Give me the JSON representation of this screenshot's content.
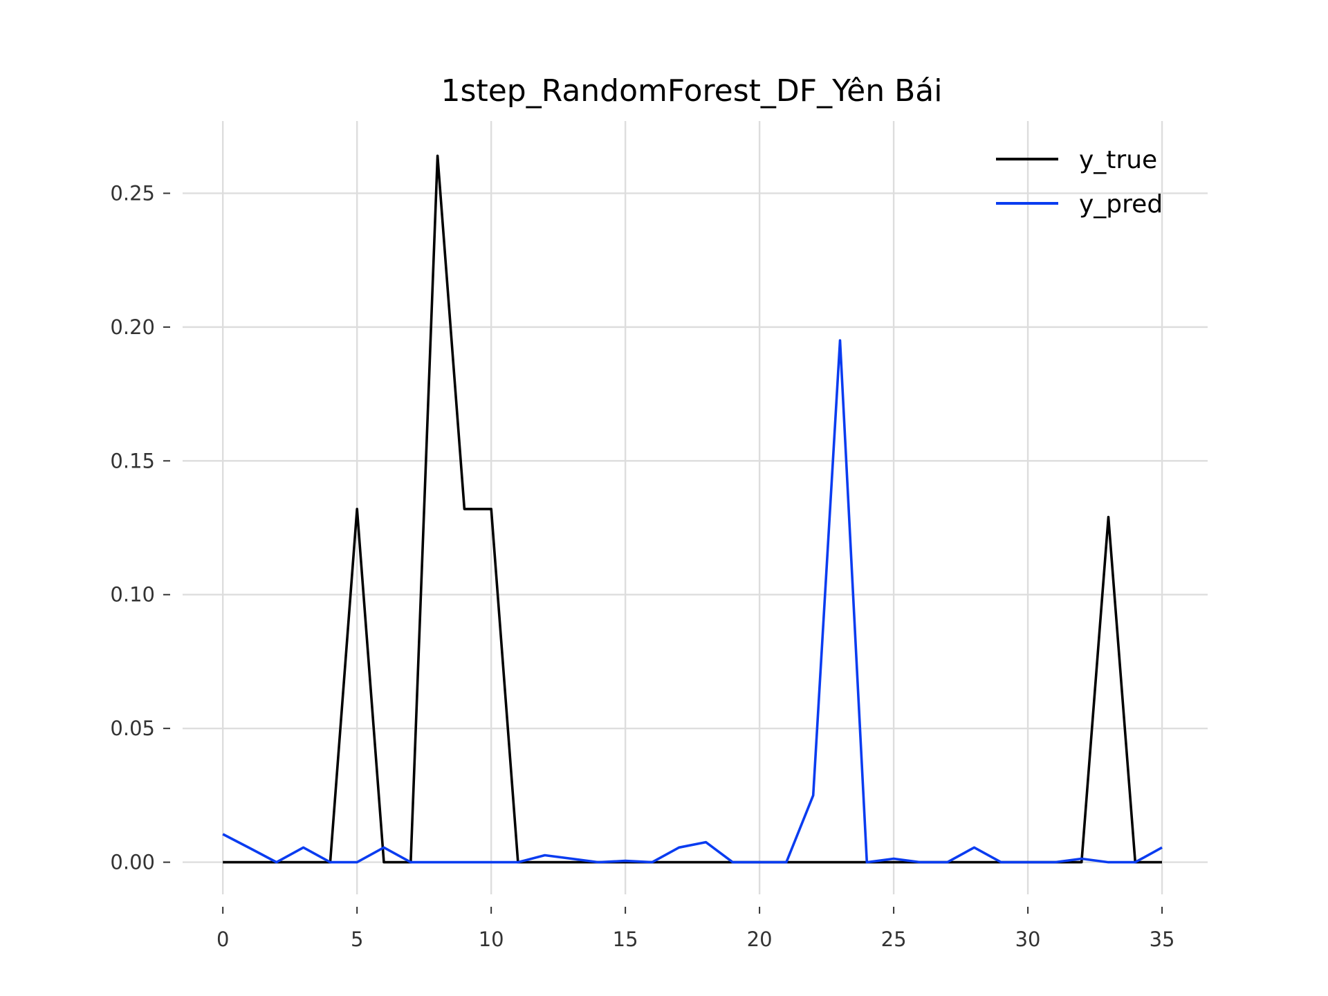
{
  "chart_data": {
    "type": "line",
    "title": "1step_RandomForest_DF_Yên Bái",
    "xlabel": "",
    "ylabel": "",
    "xlim": [
      -1.5,
      36.7
    ],
    "ylim": [
      -0.012,
      0.277
    ],
    "grid": true,
    "legend_position": "top-right",
    "x_ticks": [
      0,
      5,
      10,
      15,
      20,
      25,
      30,
      35
    ],
    "y_ticks": [
      0.0,
      0.05,
      0.1,
      0.15,
      0.2,
      0.25
    ],
    "x_tick_labels": [
      "0",
      "5",
      "10",
      "15",
      "20",
      "25",
      "30",
      "35"
    ],
    "y_tick_labels": [
      "0.00",
      "0.05",
      "0.10",
      "0.15",
      "0.20",
      "0.25"
    ],
    "x": [
      0,
      1,
      2,
      3,
      4,
      5,
      6,
      7,
      8,
      9,
      10,
      11,
      12,
      13,
      14,
      15,
      16,
      17,
      18,
      19,
      20,
      21,
      22,
      23,
      24,
      25,
      26,
      27,
      28,
      29,
      30,
      31,
      32,
      33,
      34,
      35
    ],
    "series": [
      {
        "name": "y_true",
        "color": "#000000",
        "values": [
          0,
          0,
          0,
          0,
          0,
          0.132,
          0,
          0,
          0.264,
          0.132,
          0.132,
          0,
          0,
          0,
          0,
          0,
          0,
          0,
          0,
          0,
          0,
          0,
          0,
          0,
          0,
          0,
          0,
          0,
          0,
          0,
          0,
          0,
          0,
          0.129,
          0,
          0
        ]
      },
      {
        "name": "y_pred",
        "color": "#0a3cf0",
        "values": [
          0.0105,
          0.0053,
          0,
          0.0055,
          0,
          0,
          0.0055,
          0,
          0,
          0,
          0,
          0,
          0.0026,
          0.0013,
          0,
          0.0005,
          0,
          0.0055,
          0.0075,
          0,
          0,
          0,
          0.025,
          0.195,
          0,
          0.0013,
          0,
          0,
          0.0055,
          0,
          0,
          0,
          0.0013,
          0,
          0,
          0.0055
        ]
      }
    ]
  }
}
